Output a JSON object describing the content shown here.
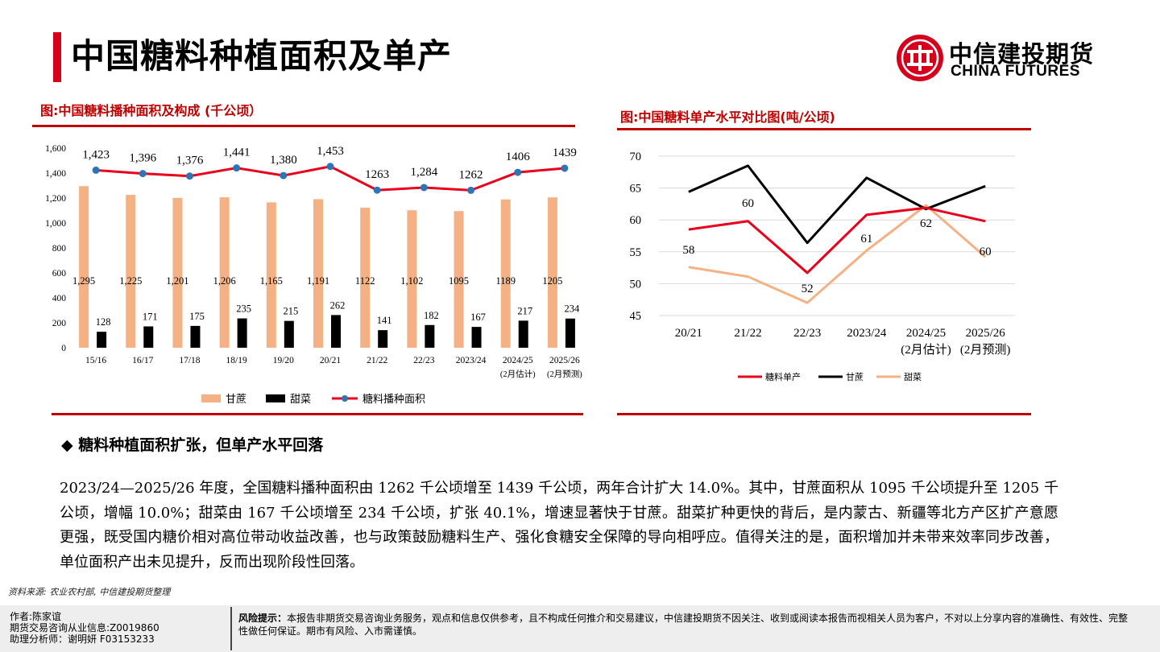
{
  "page_title": "中国糖料种植面积及单产",
  "logo": {
    "cn": "中信建投期货",
    "en": "CHINA FUTURES"
  },
  "colors": {
    "accent": "#d6001c",
    "sugarcane": "#f4b183",
    "beet_area": "#000000",
    "total": "#e8001c"
  },
  "chart1": {
    "heading": "图:中国糖料播种面积及构成 (千公顷）",
    "chart_data": {
      "type": "bar",
      "categories": [
        "15/16",
        "16/17",
        "17/18",
        "18/19",
        "19/20",
        "20/21",
        "21/22",
        "22/23",
        "2023/24",
        "2024/25",
        "2025/26"
      ],
      "category_sublabels": [
        "",
        "",
        "",
        "",
        "",
        "",
        "",
        "",
        "",
        "(2月估计)",
        "(2月预测)"
      ],
      "ylim": [
        0,
        1600
      ],
      "yticks": [
        "0",
        "200",
        "400",
        "600",
        "800",
        "1,000",
        "1,200",
        "1,400",
        "1,600"
      ],
      "series": [
        {
          "name": "甘蔗",
          "type": "bar",
          "values": [
            1295,
            1225,
            1201,
            1206,
            1165,
            1191,
            1122,
            1102,
            1095,
            1189,
            1205
          ],
          "labels": [
            "1,295",
            "1,225",
            "1,201",
            "1,206",
            "1,165",
            "1,191",
            "1122",
            "1,102",
            "1095",
            "1189",
            "1205"
          ]
        },
        {
          "name": "甜菜",
          "type": "bar",
          "values": [
            128,
            171,
            175,
            235,
            215,
            262,
            141,
            182,
            167,
            217,
            234
          ],
          "labels": [
            "128",
            "171",
            "175",
            "235",
            "215",
            "262",
            "141",
            "182",
            "167",
            "217",
            "234"
          ]
        },
        {
          "name": "糖料播种面积",
          "type": "line",
          "values": [
            1423,
            1396,
            1376,
            1441,
            1380,
            1453,
            1263,
            1284,
            1262,
            1406,
            1439
          ],
          "labels": [
            "1,423",
            "1,396",
            "1,376",
            "1,441",
            "1,380",
            "1,453",
            "1263",
            "1,284",
            "1262",
            "1406",
            "1439"
          ]
        }
      ],
      "legend": "bottom"
    }
  },
  "chart2": {
    "heading": "图:中国糖料单产水平对比图(吨/公顷)",
    "chart_data": {
      "type": "line",
      "categories": [
        "20/21",
        "21/22",
        "22/23",
        "2023/24",
        "2024/25",
        "2025/26"
      ],
      "category_sublabels": [
        "",
        "",
        "",
        "",
        "(2月估计)",
        "(2月预测)"
      ],
      "ylim": [
        45,
        70
      ],
      "yticks": [
        "45",
        "50",
        "55",
        "60",
        "65",
        "70"
      ],
      "series": [
        {
          "name": "糖料单产",
          "color": "#e8001c",
          "values": [
            58.5,
            59.8,
            51.7,
            60.8,
            61.9,
            59.8
          ],
          "labels": [
            "58",
            "60",
            "52",
            "61",
            "62",
            "60"
          ]
        },
        {
          "name": "甘蔗",
          "color": "#000000",
          "values": [
            64.4,
            68.5,
            56.4,
            66.6,
            61.7,
            65.3
          ]
        },
        {
          "name": "甜菜",
          "color": "#f4b183",
          "values": [
            52.6,
            51.1,
            47.0,
            55.2,
            62.3,
            54.2
          ]
        }
      ],
      "legend": "bottom"
    }
  },
  "bullet": "◆  糖料种植面积扩张，但单产水平回落",
  "paragraph": "2023/24—2025/26 年度，全国糖料播种面积由 1262 千公顷增至 1439 千公顷，两年合计扩大 14.0%。其中，甘蔗面积从 1095 千公顷提升至 1205 千公顷，增幅 10.0%；甜菜由 167 千公顷增至 234 千公顷，扩张 40.1%，增速显著快于甘蔗。甜菜扩种更快的背后，是内蒙古、新疆等北方产区扩产意愿更强，既受国内糖价相对高位带动收益改善，也与政策鼓励糖料生产、强化食糖安全保障的导向相呼应。值得关注的是，面积增加并未带来效率同步改善，单位面积产出未见提升，反而出现阶段性回落。",
  "source": "资料来源: 农业农村部, 中信建投期货整理",
  "footer": {
    "author": "作者:陈家谊",
    "license": "期货交易咨询从业信息:Z0019860",
    "assistant": "助理分析师：谢明妍 F03153233",
    "risk_label": "风险提示：",
    "risk_text": "本报告非期货交易咨询业务服务，观点和信息仅供参考，且不构成任何推介和交易建议，中信建投期货不因关注、收到或阅读本报告而视相关人员为客户，不对以上分享内容的准确性、有效性、完整性做任何保证。期市有风险、入市需谨慎。"
  }
}
